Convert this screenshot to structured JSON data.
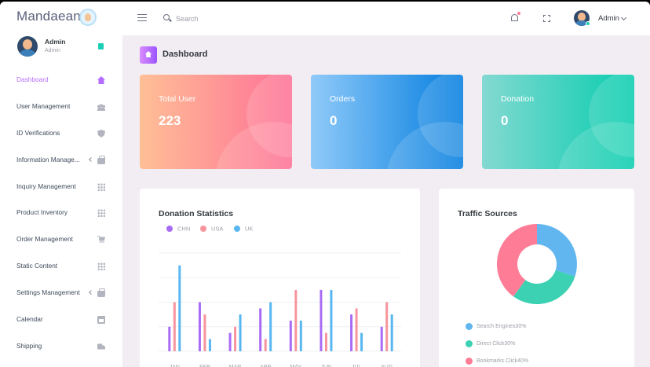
{
  "header": {
    "brand": "Mandaean",
    "search_placeholder": "Search",
    "username": "Admin"
  },
  "sidebar": {
    "profile": {
      "name": "Admin",
      "role": "Admin"
    },
    "items": [
      {
        "label": "Dashboard",
        "icon": "home-icon",
        "active": true
      },
      {
        "label": "User Management",
        "icon": "users-icon"
      },
      {
        "label": "ID Verifications",
        "icon": "shield-check-icon"
      },
      {
        "label": "Information Manage...",
        "icon": "briefcase-icon",
        "has_submenu": true
      },
      {
        "label": "Inquiry Management",
        "icon": "grid-icon"
      },
      {
        "label": "Product Inventory",
        "icon": "grid-icon"
      },
      {
        "label": "Order Management",
        "icon": "cart-icon"
      },
      {
        "label": "Static Content",
        "icon": "grid-icon"
      },
      {
        "label": "Settings Management",
        "icon": "briefcase-icon",
        "has_submenu": true
      },
      {
        "label": "Calendar",
        "icon": "calendar-icon"
      },
      {
        "label": "Shipping",
        "icon": "truck-icon"
      }
    ]
  },
  "page": {
    "title": "Dashboard"
  },
  "cards": [
    {
      "label": "Total User",
      "value": "223"
    },
    {
      "label": "Orders",
      "value": "0"
    },
    {
      "label": "Donation",
      "value": "0"
    }
  ],
  "colors": {
    "accent": "#b66dff",
    "chn": "#a86bf5",
    "usa": "#f7949d",
    "uk": "#58b7f0",
    "engines": "#61b6f0",
    "direct": "#3bd1b2",
    "bookmarks": "#fe7c96"
  },
  "donation_panel": {
    "title": "Donation Statistics"
  },
  "traffic_panel": {
    "title": "Traffic Sources"
  },
  "chart_data": [
    {
      "type": "bar",
      "title": "Donation Statistics",
      "categories": [
        "JAN",
        "FEB",
        "MAR",
        "APR",
        "MAY",
        "JUN",
        "JUL",
        "AUG"
      ],
      "series": [
        {
          "name": "CHN",
          "values": [
            20,
            40,
            15,
            35,
            25,
            50,
            30,
            20
          ]
        },
        {
          "name": "USA",
          "values": [
            40,
            30,
            20,
            10,
            50,
            15,
            35,
            40
          ]
        },
        {
          "name": "UK",
          "values": [
            70,
            10,
            30,
            40,
            25,
            50,
            15,
            30
          ]
        }
      ],
      "ylim": [
        0,
        80
      ],
      "grid": true,
      "legend": "top-left"
    },
    {
      "type": "pie",
      "title": "Traffic Sources",
      "labels": [
        "Search Engines",
        "Direct Click",
        "Bookmarks Click"
      ],
      "values": [
        30,
        30,
        40
      ],
      "legend_labels": [
        "Search Engines30%",
        "Direct Click30%",
        "Bookmarks Click40%"
      ],
      "legend": "bottom"
    }
  ]
}
